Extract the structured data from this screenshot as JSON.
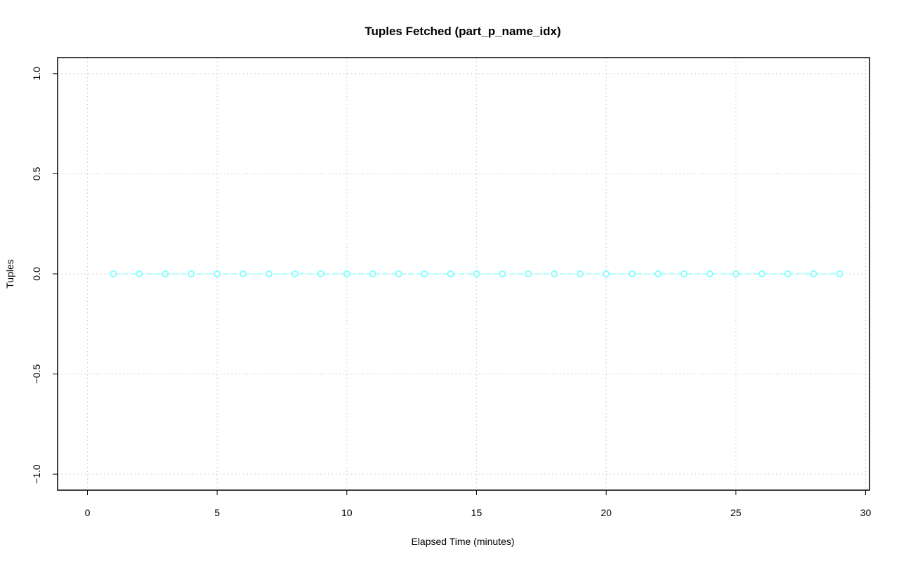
{
  "chart_data": {
    "type": "line",
    "title": "Tuples Fetched (part_p_name_idx)",
    "xlabel": "Elapsed Time (minutes)",
    "ylabel": "Tuples",
    "xlim": [
      -1.15,
      30.15
    ],
    "ylim": [
      -1.08,
      1.08
    ],
    "xticks": [
      0,
      5,
      10,
      15,
      20,
      25,
      30
    ],
    "yticks": [
      -1.0,
      -0.5,
      0.0,
      0.5,
      1.0
    ],
    "ytick_labels": [
      "−1.0",
      "−0.5",
      "0.0",
      "0.5",
      "1.0"
    ],
    "grid": true,
    "series": [
      {
        "color": "#7fffff",
        "marker": "open-circle",
        "line_style": "dashed",
        "x": [
          1,
          2,
          3,
          4,
          5,
          6,
          7,
          8,
          9,
          10,
          11,
          12,
          13,
          14,
          15,
          16,
          17,
          18,
          19,
          20,
          21,
          22,
          23,
          24,
          25,
          26,
          27,
          28,
          29
        ],
        "y": [
          0,
          0,
          0,
          0,
          0,
          0,
          0,
          0,
          0,
          0,
          0,
          0,
          0,
          0,
          0,
          0,
          0,
          0,
          0,
          0,
          0,
          0,
          0,
          0,
          0,
          0,
          0,
          0,
          0
        ]
      }
    ]
  }
}
